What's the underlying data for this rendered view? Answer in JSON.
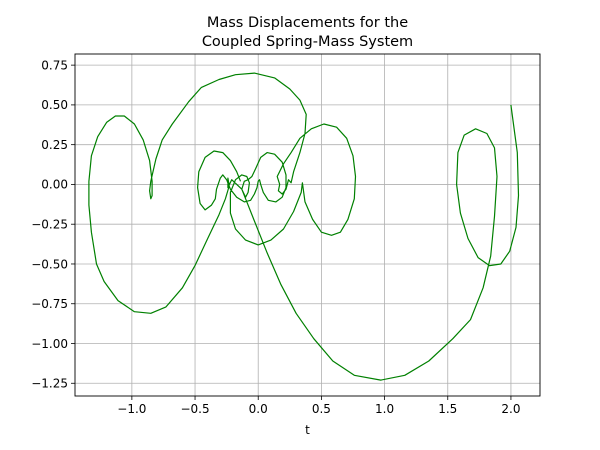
{
  "chart_data": {
    "type": "line",
    "title_lines": [
      "Mass Displacements for the",
      "Coupled Spring-Mass System"
    ],
    "xlabel": "t",
    "ylabel": "",
    "xlim": [
      -1.45,
      2.23
    ],
    "ylim": [
      -1.33,
      0.82
    ],
    "xticks": [
      -1.0,
      -0.5,
      0.0,
      0.5,
      1.0,
      1.5,
      2.0
    ],
    "xtick_labels": [
      "−1.0",
      "−0.5",
      "0.0",
      "0.5",
      "1.0",
      "1.5",
      "2.0"
    ],
    "yticks": [
      0.75,
      0.5,
      0.25,
      0.0,
      -0.25,
      -0.5,
      -0.75,
      -1.0,
      -1.25
    ],
    "ytick_labels": [
      "0.75",
      "0.50",
      "0.25",
      "0.00",
      "−0.25",
      "−0.50",
      "−0.75",
      "−1.00",
      "−1.25"
    ],
    "grid": true,
    "series": [
      {
        "color": "#008000",
        "points": [
          [
            2.0,
            0.5
          ],
          [
            2.05,
            0.2
          ],
          [
            2.06,
            -0.07
          ],
          [
            2.04,
            -0.27
          ],
          [
            1.99,
            -0.42
          ],
          [
            1.92,
            -0.5
          ],
          [
            1.83,
            -0.51
          ],
          [
            1.74,
            -0.46
          ],
          [
            1.66,
            -0.34
          ],
          [
            1.6,
            -0.18
          ],
          [
            1.57,
            0.0
          ],
          [
            1.58,
            0.2
          ],
          [
            1.63,
            0.31
          ],
          [
            1.72,
            0.35
          ],
          [
            1.81,
            0.32
          ],
          [
            1.87,
            0.23
          ],
          [
            1.89,
            0.05
          ],
          [
            1.87,
            -0.2
          ],
          [
            1.84,
            -0.45
          ],
          [
            1.78,
            -0.65
          ],
          [
            1.68,
            -0.85
          ],
          [
            1.54,
            -0.97
          ],
          [
            1.35,
            -1.11
          ],
          [
            1.16,
            -1.2
          ],
          [
            0.97,
            -1.23
          ],
          [
            0.76,
            -1.2
          ],
          [
            0.59,
            -1.11
          ],
          [
            0.44,
            -0.97
          ],
          [
            0.3,
            -0.81
          ],
          [
            0.18,
            -0.63
          ],
          [
            0.07,
            -0.43
          ],
          [
            -0.03,
            -0.23
          ],
          [
            -0.13,
            -0.03
          ],
          [
            -0.21,
            0.03
          ],
          [
            -0.24,
            -0.02
          ],
          [
            -0.24,
            0.02
          ],
          [
            -0.24,
            0.04
          ],
          [
            -0.23,
            -0.01
          ],
          [
            -0.26,
            -0.09
          ],
          [
            -0.31,
            -0.19
          ],
          [
            -0.4,
            -0.34
          ],
          [
            -0.5,
            -0.51
          ],
          [
            -0.6,
            -0.65
          ],
          [
            -0.73,
            -0.77
          ],
          [
            -0.85,
            -0.81
          ],
          [
            -0.98,
            -0.8
          ],
          [
            -1.11,
            -0.73
          ],
          [
            -1.22,
            -0.61
          ],
          [
            -1.28,
            -0.5
          ],
          [
            -1.32,
            -0.3
          ],
          [
            -1.34,
            -0.13
          ],
          [
            -1.34,
            0.02
          ],
          [
            -1.32,
            0.18
          ],
          [
            -1.27,
            0.3
          ],
          [
            -1.2,
            0.39
          ],
          [
            -1.13,
            0.43
          ],
          [
            -1.06,
            0.43
          ],
          [
            -0.98,
            0.38
          ],
          [
            -0.91,
            0.28
          ],
          [
            -0.86,
            0.15
          ],
          [
            -0.84,
            0.02
          ],
          [
            -0.84,
            -0.07
          ],
          [
            -0.85,
            -0.09
          ],
          [
            -0.86,
            -0.04
          ],
          [
            -0.85,
            0.02
          ],
          [
            -0.81,
            0.16
          ],
          [
            -0.76,
            0.28
          ],
          [
            -0.68,
            0.38
          ],
          [
            -0.55,
            0.52
          ],
          [
            -0.45,
            0.61
          ],
          [
            -0.31,
            0.66
          ],
          [
            -0.18,
            0.69
          ],
          [
            -0.03,
            0.7
          ],
          [
            0.13,
            0.67
          ],
          [
            0.25,
            0.6
          ],
          [
            0.33,
            0.53
          ],
          [
            0.38,
            0.44
          ],
          [
            0.37,
            0.32
          ],
          [
            0.33,
            0.2
          ],
          [
            0.28,
            0.08
          ],
          [
            0.26,
            0.01
          ],
          [
            0.24,
            0.03
          ],
          [
            0.23,
            0.0
          ],
          [
            0.22,
            -0.03
          ],
          [
            0.19,
            -0.06
          ],
          [
            0.16,
            -0.04
          ],
          [
            0.17,
            0.0
          ],
          [
            0.15,
            0.05
          ],
          [
            0.2,
            0.13
          ],
          [
            0.26,
            0.2
          ],
          [
            0.33,
            0.29
          ],
          [
            0.42,
            0.35
          ],
          [
            0.52,
            0.38
          ],
          [
            0.62,
            0.36
          ],
          [
            0.7,
            0.29
          ],
          [
            0.75,
            0.18
          ],
          [
            0.77,
            0.05
          ],
          [
            0.76,
            -0.09
          ],
          [
            0.71,
            -0.22
          ],
          [
            0.65,
            -0.3
          ],
          [
            0.58,
            -0.32
          ],
          [
            0.5,
            -0.3
          ],
          [
            0.43,
            -0.22
          ],
          [
            0.37,
            -0.11
          ],
          [
            0.35,
            0.01
          ],
          [
            0.34,
            -0.05
          ],
          [
            0.28,
            -0.17
          ],
          [
            0.2,
            -0.28
          ],
          [
            0.1,
            -0.35
          ],
          [
            0.0,
            -0.38
          ],
          [
            -0.1,
            -0.35
          ],
          [
            -0.18,
            -0.28
          ],
          [
            -0.22,
            -0.18
          ],
          [
            -0.22,
            -0.05
          ],
          [
            -0.18,
            0.03
          ],
          [
            -0.13,
            0.06
          ],
          [
            -0.09,
            0.05
          ],
          [
            -0.07,
            0.01
          ],
          [
            -0.08,
            -0.05
          ],
          [
            -0.1,
            -0.08
          ],
          [
            -0.13,
            -0.03
          ],
          [
            -0.11,
            0.02
          ],
          [
            -0.08,
            0.03
          ],
          [
            -0.05,
            0.05
          ],
          [
            -0.02,
            0.1
          ],
          [
            0.02,
            0.17
          ],
          [
            0.07,
            0.2
          ],
          [
            0.13,
            0.19
          ],
          [
            0.19,
            0.14
          ],
          [
            0.22,
            0.06
          ],
          [
            0.22,
            -0.02
          ],
          [
            0.19,
            -0.08
          ],
          [
            0.14,
            -0.11
          ],
          [
            0.08,
            -0.1
          ],
          [
            0.04,
            -0.05
          ],
          [
            0.02,
            0.0
          ],
          [
            0.01,
            0.03
          ],
          [
            0.0,
            0.02
          ],
          [
            -0.01,
            -0.02
          ],
          [
            -0.03,
            -0.06
          ],
          [
            -0.06,
            -0.1
          ],
          [
            -0.11,
            -0.11
          ],
          [
            -0.17,
            -0.08
          ],
          [
            -0.22,
            -0.03
          ],
          [
            -0.25,
            0.03
          ],
          [
            -0.28,
            0.06
          ],
          [
            -0.3,
            0.04
          ],
          [
            -0.33,
            -0.03
          ],
          [
            -0.34,
            -0.09
          ],
          [
            -0.37,
            -0.13
          ],
          [
            -0.42,
            -0.16
          ],
          [
            -0.46,
            -0.12
          ],
          [
            -0.48,
            -0.02
          ],
          [
            -0.47,
            0.08
          ],
          [
            -0.42,
            0.17
          ],
          [
            -0.35,
            0.21
          ],
          [
            -0.28,
            0.2
          ],
          [
            -0.22,
            0.15
          ],
          [
            -0.17,
            0.08
          ],
          [
            -0.14,
            0.02
          ]
        ]
      }
    ]
  }
}
